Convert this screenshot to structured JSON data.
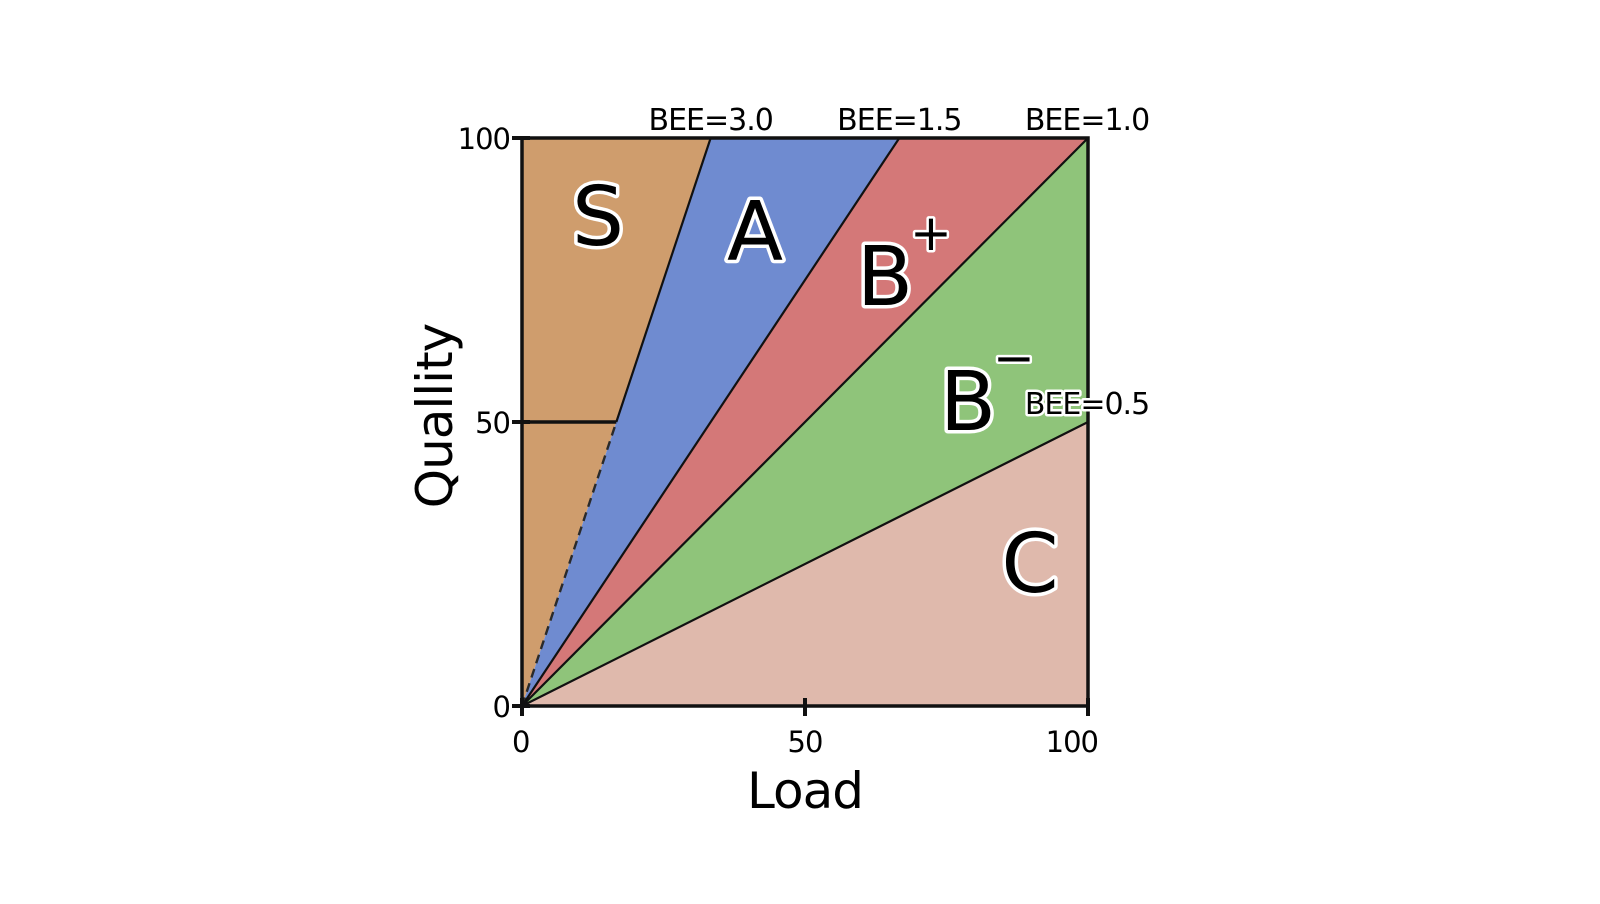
{
  "chart_data": {
    "type": "area",
    "xlabel": "Load",
    "ylabel": "Quallity",
    "xlim": [
      0,
      100
    ],
    "ylim": [
      0,
      100
    ],
    "x_ticks": [
      0,
      50,
      100
    ],
    "y_ticks": [
      0,
      50,
      100
    ],
    "x_tick_labels": [
      "0",
      "50",
      "100"
    ],
    "y_tick_labels": [
      "0",
      "50",
      "100"
    ],
    "grid": false,
    "lines": [
      {
        "label": "BEE=3.0",
        "slope": 3.0
      },
      {
        "label": "BEE=1.5",
        "slope": 1.5
      },
      {
        "label": "BEE=1.0",
        "slope": 1.0
      },
      {
        "label": "BEE=0.5",
        "slope": 0.5
      }
    ],
    "regions": [
      {
        "label": "S",
        "superscript": "",
        "color": "#cf9d6d",
        "bee_range": [
          3.0,
          null
        ]
      },
      {
        "label": "A",
        "superscript": "",
        "color": "#6f8bd0",
        "bee_range": [
          1.5,
          3.0
        ]
      },
      {
        "label": "B",
        "superscript": "+",
        "color": "#d47878",
        "bee_range": [
          1.0,
          1.5
        ]
      },
      {
        "label": "B",
        "superscript": "−",
        "color": "#8fc47a",
        "bee_range": [
          0.5,
          1.0
        ]
      },
      {
        "label": "C",
        "superscript": "",
        "color": "#dfb9ac",
        "bee_range": [
          0,
          0.5
        ]
      }
    ],
    "reference": {
      "y": 50,
      "description_line_from_x": 0
    }
  }
}
